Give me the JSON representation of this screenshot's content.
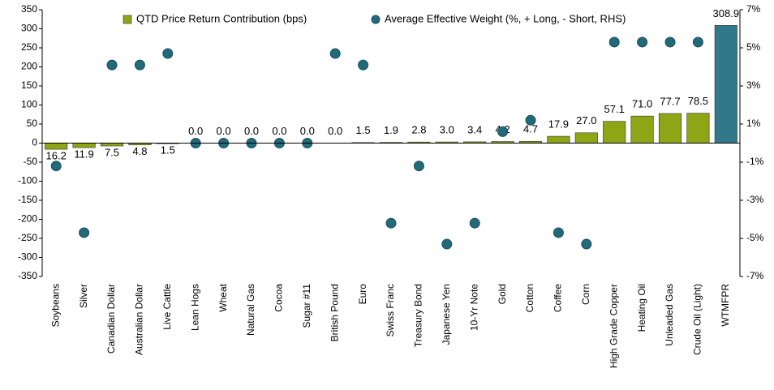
{
  "chart_data": {
    "type": "bar",
    "categories": [
      "Soybeans",
      "Silver",
      "Canadian Dollar",
      "Australian Dollar",
      "Live Cattle",
      "Lean Hogs",
      "Wheat",
      "Natural Gas",
      "Cocoa",
      "Sugar #11",
      "British Pound",
      "Euro",
      "Swiss Franc",
      "Treasury Bond",
      "Japanese Yen",
      "10-Yr Note",
      "Gold",
      "Cotton",
      "Coffee",
      "Corn",
      "High Grade Copper",
      "Heating Oil",
      "Unleaded Gas",
      "Crude Oil (Light)",
      "WTMFPR"
    ],
    "series": [
      {
        "name": "QTD Price Return Contribution (bps)",
        "type": "bar",
        "color": "#8ea516",
        "colors": [
          "#8ea516",
          "#8ea516",
          "#8ea516",
          "#8ea516",
          "#8ea516",
          "#8ea516",
          "#8ea516",
          "#8ea516",
          "#8ea516",
          "#8ea516",
          "#8ea516",
          "#8ea516",
          "#8ea516",
          "#8ea516",
          "#8ea516",
          "#8ea516",
          "#8ea516",
          "#8ea516",
          "#8ea516",
          "#8ea516",
          "#8ea516",
          "#8ea516",
          "#8ea516",
          "#8ea516",
          "#31788a"
        ],
        "values": [
          -16.2,
          -11.9,
          -7.5,
          -4.8,
          -1.5,
          0,
          0,
          0,
          0,
          0,
          0,
          1.5,
          1.9,
          2.8,
          3.0,
          3.4,
          4.2,
          4.7,
          17.9,
          27.0,
          57.1,
          71.0,
          77.7,
          78.5,
          308.9
        ],
        "value_labels": [
          "16.2",
          "11.9",
          "7.5",
          "4.8",
          "1.5",
          "0.0",
          "0.0",
          "0.0",
          "0.0",
          "0.0",
          "0.0",
          "1.5",
          "1.9",
          "2.8",
          "3.0",
          "3.4",
          "4.2",
          "4.7",
          "17.9",
          "27.0",
          "57.1",
          "71.0",
          "77.7",
          "78.5",
          "308.9"
        ],
        "negative_label_color": "#ff0000"
      },
      {
        "name": "Average Effective Weight (%, + Long, - Short, RHS)",
        "type": "scatter",
        "axis": "y2",
        "color": "#226a7a",
        "values": [
          -1.2,
          -4.7,
          4.1,
          4.1,
          4.7,
          0,
          0,
          0,
          0,
          0,
          4.7,
          4.1,
          -4.2,
          -1.2,
          -5.3,
          -4.2,
          0.6,
          1.2,
          -4.7,
          -5.3,
          5.3,
          5.3,
          5.3,
          5.3,
          null
        ]
      }
    ],
    "ylim": [
      -350,
      350
    ],
    "yticks": [
      -350,
      -300,
      -250,
      -200,
      -150,
      -100,
      -50,
      0,
      50,
      100,
      150,
      200,
      250,
      300,
      350
    ],
    "y2lim": [
      -7,
      7
    ],
    "y2ticks": [
      {
        "value": -7,
        "label": "-7%"
      },
      {
        "value": -5,
        "label": "-5%"
      },
      {
        "value": -3,
        "label": "-3%"
      },
      {
        "value": -1,
        "label": "-1%"
      },
      {
        "value": 1,
        "label": "1%"
      },
      {
        "value": 3,
        "label": "3%"
      },
      {
        "value": 5,
        "label": "5%"
      },
      {
        "value": 7,
        "label": "7%"
      }
    ],
    "grid": false,
    "legend": "top"
  }
}
